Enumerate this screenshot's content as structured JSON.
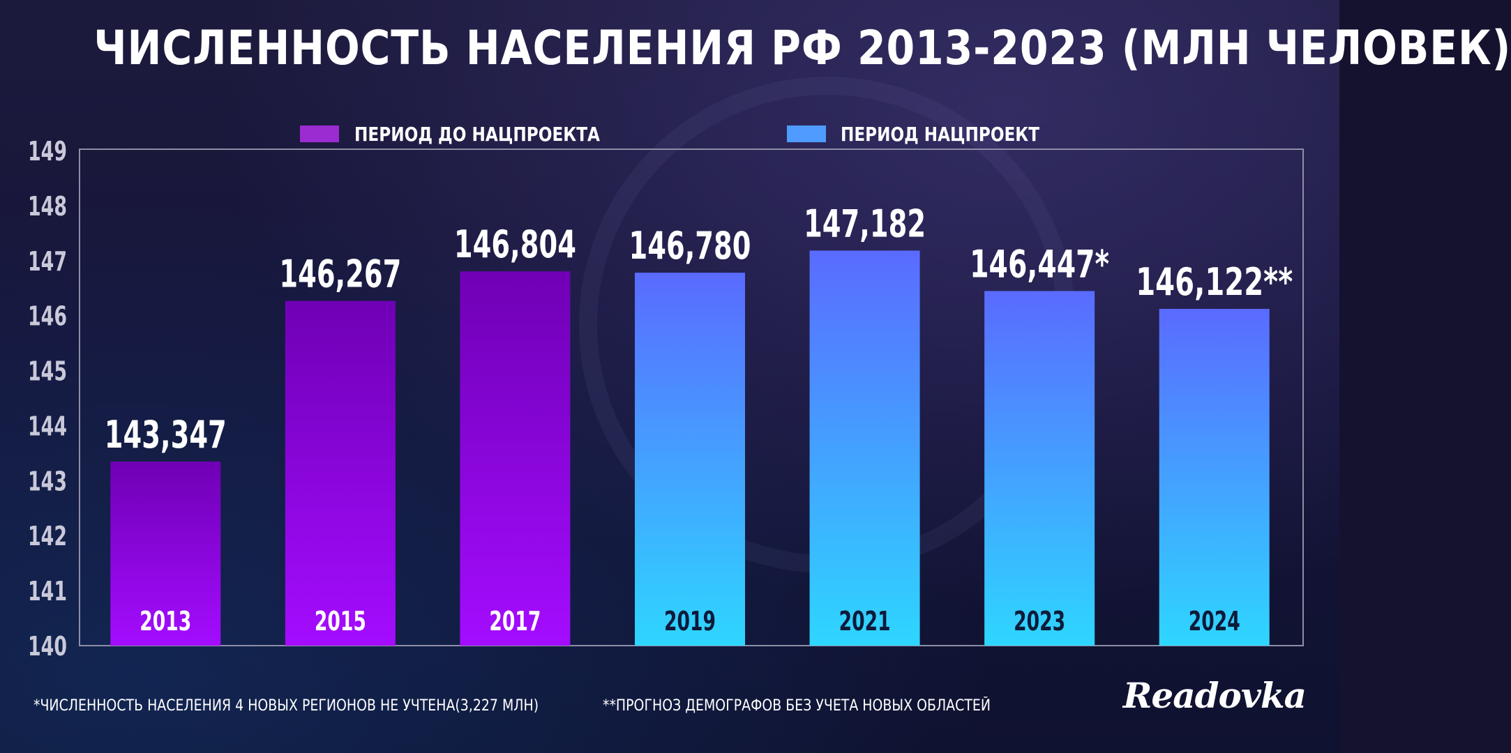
{
  "title": "ЧИСЛЕННОСТЬ НАСЕЛЕНИЯ РФ 2013-2023 (МЛН ЧЕЛОВЕК)",
  "legend": [
    {
      "label": "ПЕРИОД ДО НАЦПРОЕКТА",
      "color": "#9a2cd2"
    },
    {
      "label": "ПЕРИОД НАЦПРОЕКТ",
      "color": "#4f9bff"
    }
  ],
  "footnotes": {
    "note1": "*ЧИСЛЕННОСТЬ НАСЕЛЕНИЯ 4 НОВЫХ РЕГИОНОВ НЕ УЧТЕНА(3,227 МЛН)",
    "note2": "**ПРОГНОЗ ДЕМОГРАФОВ БЕЗ УЧЕТА НОВЫХ ОБЛАСТЕЙ"
  },
  "logo": "Readovka",
  "colors": {
    "purple_top": "#6f00b5",
    "purple_bottom": "#a40cff",
    "blue_top": "#5a6bff",
    "blue_bottom": "#2ed6ff",
    "axis_text": "#c9c9d9",
    "frame": "#8e8ea6"
  },
  "chart_data": {
    "type": "bar",
    "categories": [
      "2013",
      "2015",
      "2017",
      "2019",
      "2021",
      "2023",
      "2024"
    ],
    "values": [
      143.347,
      146.267,
      146.804,
      146.78,
      147.182,
      146.447,
      146.122
    ],
    "data_labels": [
      "143,347",
      "146,267",
      "146,804",
      "146,780",
      "147,182",
      "146,447*",
      "146,122**"
    ],
    "period": [
      "before",
      "before",
      "before",
      "project",
      "project",
      "project",
      "project"
    ],
    "ylim": [
      140,
      149
    ],
    "yticks": [
      "140",
      "141",
      "142",
      "143",
      "144",
      "145",
      "146",
      "147",
      "148",
      "149"
    ],
    "xlabel": "",
    "ylabel": "",
    "legend_position": "top",
    "grid": false
  }
}
